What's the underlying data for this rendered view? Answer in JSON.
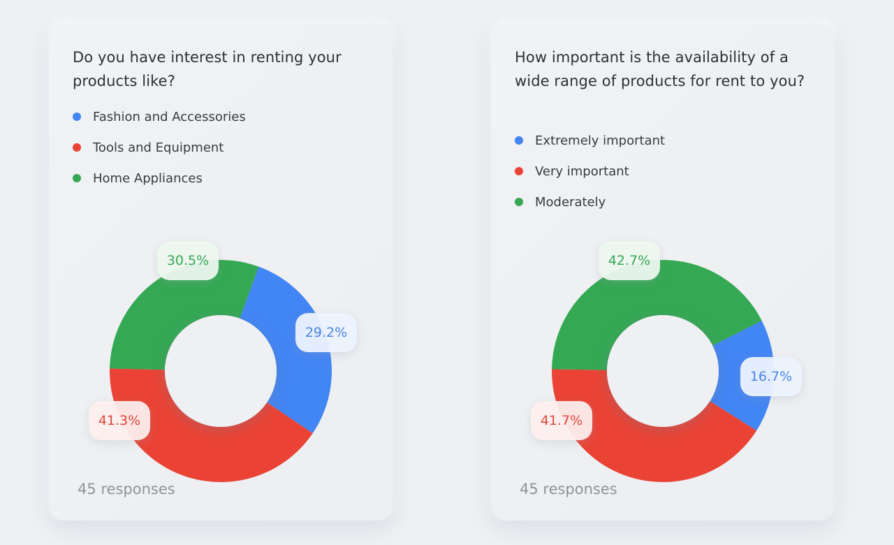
{
  "colors": {
    "blue": "#4285f4",
    "red": "#ea4335",
    "green": "#34a853"
  },
  "chart_data": [
    {
      "type": "pie",
      "title": "Do you have interest in renting your products like?",
      "categories": [
        "Fashion and Accessories",
        "Tools and Equipment",
        "Home Appliances"
      ],
      "values": [
        29.2,
        41.3,
        30.5
      ],
      "value_labels": [
        "29.2%",
        "41.3%",
        "30.5%"
      ],
      "colors": [
        "#4285f4",
        "#ea4335",
        "#34a853"
      ],
      "donut": true,
      "legend_position": "top-left",
      "footer": "45 responses"
    },
    {
      "type": "pie",
      "title": "How important is the availability of a wide range of  products for rent to you?",
      "categories": [
        "Extremely important",
        "Very important",
        "Moderately"
      ],
      "values": [
        16.7,
        41.7,
        42.7
      ],
      "value_labels": [
        "16.7%",
        "41.7%",
        "42.7%"
      ],
      "colors": [
        "#4285f4",
        "#ea4335",
        "#34a853"
      ],
      "donut": true,
      "legend_position": "top-left",
      "footer": "45 responses"
    }
  ]
}
